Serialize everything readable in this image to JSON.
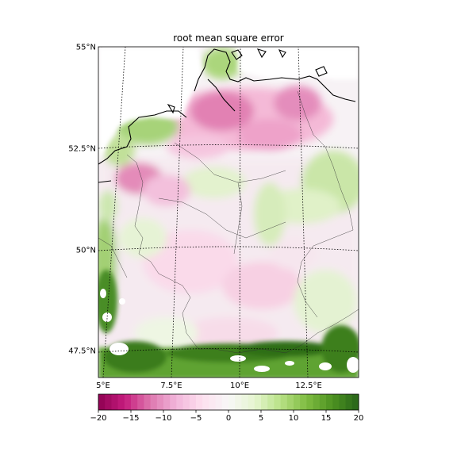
{
  "title": "root mean square error",
  "latitude_labels": [
    "55°N",
    "52.5°N",
    "50°N",
    "47.5°N"
  ],
  "longitude_labels": [
    "5°E",
    "7.5°E",
    "10°E",
    "12.5°E"
  ],
  "colorbar": {
    "min": -20,
    "max": 20,
    "levels": 40,
    "tick_labels": [
      "−20",
      "−15",
      "−10",
      "−5",
      "0",
      "5",
      "10",
      "15",
      "20"
    ],
    "colormap": "PiYG",
    "colors": [
      "#8e0152",
      "#c51b7d",
      "#de77ae",
      "#f1b6da",
      "#fde0ef",
      "#f7f7f7",
      "#e6f5d0",
      "#b8e186",
      "#7fbc41",
      "#4d9221",
      "#276419"
    ]
  },
  "map": {
    "region": "Germany",
    "extent": {
      "lon_min": 5,
      "lon_max": 14.5,
      "lat_min": 47,
      "lat_max": 55
    },
    "gridlines": true,
    "gridline_style": "dotted",
    "coastlines": true,
    "borders": true,
    "field_description": "RMSE field: strong pink over North Sea coast and northwest, strong green along Alpine south edge and west fringe, pale mixed elsewhere"
  }
}
